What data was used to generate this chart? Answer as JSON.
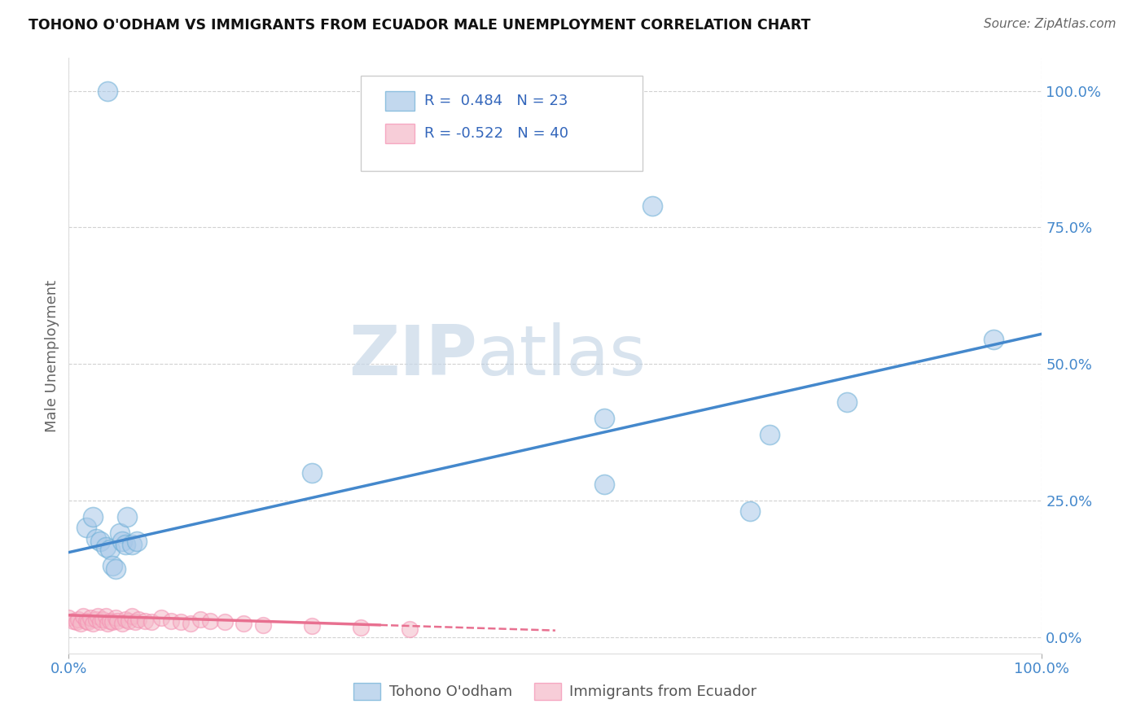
{
  "title": "TOHONO O'ODHAM VS IMMIGRANTS FROM ECUADOR MALE UNEMPLOYMENT CORRELATION CHART",
  "source": "Source: ZipAtlas.com",
  "ylabel": "Male Unemployment",
  "xlim": [
    0,
    1
  ],
  "ylim": [
    0,
    1
  ],
  "xtick_labels": [
    "0.0%",
    "100.0%"
  ],
  "ytick_labels": [
    "0.0%",
    "25.0%",
    "50.0%",
    "75.0%",
    "100.0%"
  ],
  "ytick_positions": [
    0.0,
    0.25,
    0.5,
    0.75,
    1.0
  ],
  "legend_label1": "Tohono O'odham",
  "legend_label2": "Immigrants from Ecuador",
  "r1": "0.484",
  "n1": "23",
  "r2": "-0.522",
  "n2": "40",
  "blue_color": "#a8c8e8",
  "pink_color": "#f4b8c8",
  "blue_edge_color": "#6baed6",
  "pink_edge_color": "#f48fb1",
  "blue_line_color": "#4488cc",
  "pink_line_color": "#e87090",
  "watermark_color": "#dde8f0",
  "blue_scatter_x": [
    0.018,
    0.025,
    0.028,
    0.032,
    0.038,
    0.042,
    0.045,
    0.048,
    0.052,
    0.055,
    0.058,
    0.06,
    0.065,
    0.07,
    0.25,
    0.55,
    0.6,
    0.72,
    0.8,
    0.95,
    0.04,
    0.55,
    0.7
  ],
  "blue_scatter_y": [
    0.2,
    0.22,
    0.18,
    0.175,
    0.165,
    0.16,
    0.13,
    0.125,
    0.19,
    0.175,
    0.17,
    0.22,
    0.17,
    0.175,
    0.3,
    0.28,
    0.79,
    0.37,
    0.43,
    0.545,
    1.0,
    0.4,
    0.23
  ],
  "pink_scatter_x": [
    0.0,
    0.005,
    0.008,
    0.01,
    0.012,
    0.015,
    0.018,
    0.02,
    0.022,
    0.025,
    0.028,
    0.03,
    0.032,
    0.035,
    0.038,
    0.04,
    0.042,
    0.045,
    0.048,
    0.05,
    0.055,
    0.058,
    0.062,
    0.065,
    0.068,
    0.072,
    0.078,
    0.085,
    0.095,
    0.105,
    0.115,
    0.125,
    0.135,
    0.145,
    0.16,
    0.18,
    0.2,
    0.25,
    0.3,
    0.35
  ],
  "pink_scatter_y": [
    0.035,
    0.03,
    0.028,
    0.032,
    0.025,
    0.038,
    0.03,
    0.028,
    0.035,
    0.025,
    0.032,
    0.038,
    0.028,
    0.032,
    0.038,
    0.025,
    0.03,
    0.028,
    0.035,
    0.03,
    0.025,
    0.032,
    0.03,
    0.038,
    0.028,
    0.032,
    0.03,
    0.028,
    0.035,
    0.03,
    0.028,
    0.025,
    0.032,
    0.03,
    0.028,
    0.025,
    0.022,
    0.02,
    0.018,
    0.015
  ],
  "blue_line_x0": 0.0,
  "blue_line_y0": 0.155,
  "blue_line_x1": 1.0,
  "blue_line_y1": 0.555,
  "pink_line_x0": 0.0,
  "pink_line_y0": 0.04,
  "pink_line_x_break": 0.32,
  "pink_line_y_break": 0.022,
  "pink_line_x1": 0.5,
  "pink_line_y1": 0.012
}
